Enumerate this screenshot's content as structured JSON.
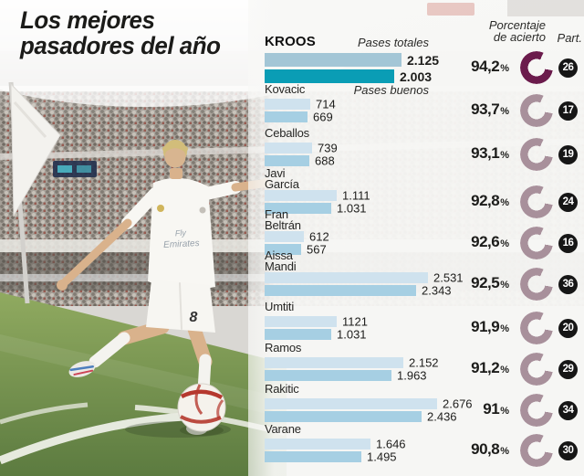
{
  "title": {
    "line1": "Los mejores",
    "line2": "pasadores del año"
  },
  "columns": {
    "accuracy_line1": "Porcentaje",
    "accuracy_line2": "de acierto",
    "participation": "Part."
  },
  "percent_sign": "%",
  "photo": {
    "sponsor_line1": "Fly",
    "sponsor_line2": "Emirates",
    "shirt_number": "8"
  },
  "colors": {
    "bar_total": "#cfe2ee",
    "bar_good": "#a6cfe3",
    "bar_total_highlight": "#a3c6d6",
    "bar_good_highlight": "#0a9db5",
    "donut": "#a8909b",
    "donut_highlight": "#6b1b4c",
    "badge": "#161616"
  },
  "chart_data": {
    "type": "bar",
    "orientation": "horizontal",
    "title": "Los mejores pasadores del año",
    "series_labels": [
      "Pases totales",
      "Pases buenos"
    ],
    "extra_columns": [
      "Porcentaje de acierto",
      "Part."
    ],
    "players": [
      {
        "name_line1": "KROOS",
        "name_line2": "",
        "total": 2125,
        "good": 2003,
        "total_display": "2.125",
        "good_display": "2.003",
        "accuracy": 94.2,
        "accuracy_display": "94,2",
        "matches": "26",
        "highlight": true
      },
      {
        "name_line1": "Kovacic",
        "name_line2": "",
        "total": 714,
        "good": 669,
        "total_display": "714",
        "good_display": "669",
        "accuracy": 93.7,
        "accuracy_display": "93,7",
        "matches": "17",
        "highlight": false
      },
      {
        "name_line1": "Ceballos",
        "name_line2": "",
        "total": 739,
        "good": 688,
        "total_display": "739",
        "good_display": "688",
        "accuracy": 93.1,
        "accuracy_display": "93,1",
        "matches": "19",
        "highlight": false
      },
      {
        "name_line1": "Javi",
        "name_line2": "García",
        "total": 1111,
        "good": 1031,
        "total_display": "1.111",
        "good_display": "1.031",
        "accuracy": 92.8,
        "accuracy_display": "92,8",
        "matches": "24",
        "highlight": false
      },
      {
        "name_line1": "Fran",
        "name_line2": "Beltrán",
        "total": 612,
        "good": 567,
        "total_display": "612",
        "good_display": "567",
        "accuracy": 92.6,
        "accuracy_display": "92,6",
        "matches": "16",
        "highlight": false
      },
      {
        "name_line1": "Aissa",
        "name_line2": "Mandi",
        "total": 2531,
        "good": 2343,
        "total_display": "2.531",
        "good_display": "2.343",
        "accuracy": 92.5,
        "accuracy_display": "92,5",
        "matches": "36",
        "highlight": false
      },
      {
        "name_line1": "Umtiti",
        "name_line2": "",
        "total": 1121,
        "good": 1031,
        "total_display": "1121",
        "good_display": "1.031",
        "accuracy": 91.9,
        "accuracy_display": "91,9",
        "matches": "20",
        "highlight": false
      },
      {
        "name_line1": "Ramos",
        "name_line2": "",
        "total": 2152,
        "good": 1963,
        "total_display": "2.152",
        "good_display": "1.963",
        "accuracy": 91.2,
        "accuracy_display": "91,2",
        "matches": "29",
        "highlight": false
      },
      {
        "name_line1": "Rakitic",
        "name_line2": "",
        "total": 2676,
        "good": 2436,
        "total_display": "2.676",
        "good_display": "2.436",
        "accuracy": 91,
        "accuracy_display": "91",
        "matches": "34",
        "highlight": false
      },
      {
        "name_line1": "Varane",
        "name_line2": "",
        "total": 1646,
        "good": 1495,
        "total_display": "1.646",
        "good_display": "1.495",
        "accuracy": 90.8,
        "accuracy_display": "90,8",
        "matches": "30",
        "highlight": false
      }
    ]
  }
}
